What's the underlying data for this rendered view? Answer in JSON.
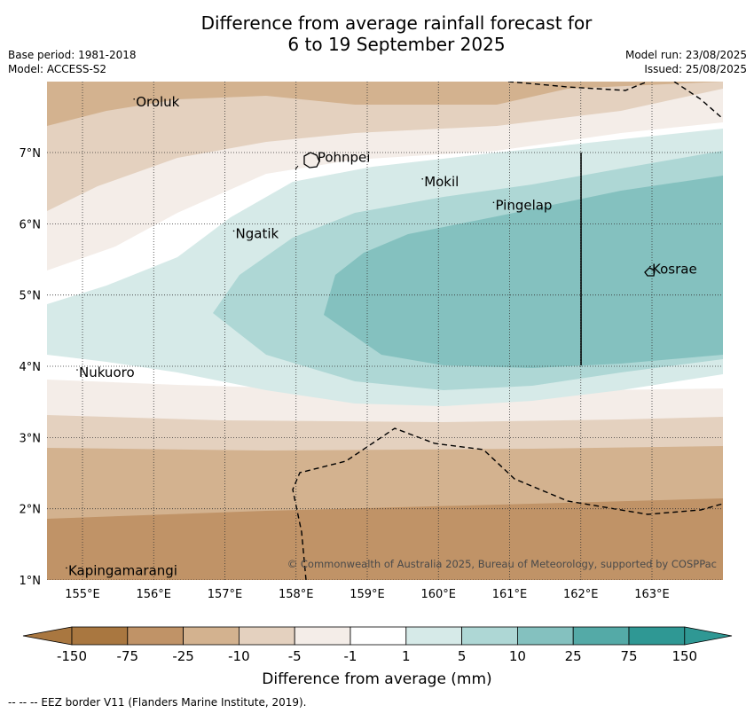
{
  "title_line1": "Difference from average rainfall forecast for",
  "title_line2": "6 to 19 September 2025",
  "meta_left": [
    "Base period: 1981-2018",
    "Model: ACCESS-S2"
  ],
  "meta_right": [
    "Model run: 23/08/2025",
    "Issued: 25/08/2025"
  ],
  "lon_ticks": [
    "155°E",
    "156°E",
    "157°E",
    "158°E",
    "159°E",
    "160°E",
    "161°E",
    "162°E",
    "163°E"
  ],
  "lon_values": [
    155,
    156,
    157,
    158,
    159,
    160,
    161,
    162,
    163
  ],
  "lat_ticks": [
    "1°N",
    "2°N",
    "3°N",
    "4°N",
    "5°N",
    "6°N",
    "7°N"
  ],
  "lat_values": [
    1,
    2,
    3,
    4,
    5,
    6,
    7
  ],
  "places": [
    {
      "name": "Oroluk",
      "lon": 155.75,
      "lat": 7.65
    },
    {
      "name": "Pohnpei",
      "lon": 158.3,
      "lat": 6.87
    },
    {
      "name": "Mokil",
      "lon": 159.8,
      "lat": 6.53
    },
    {
      "name": "Pingelap",
      "lon": 160.8,
      "lat": 6.2
    },
    {
      "name": "Ngatik",
      "lon": 157.15,
      "lat": 5.8
    },
    {
      "name": "Kosrae",
      "lon": 163.0,
      "lat": 5.3
    },
    {
      "name": "Nukuoro",
      "lon": 154.95,
      "lat": 3.85
    },
    {
      "name": "Kapingamarangi",
      "lon": 154.8,
      "lat": 1.07
    }
  ],
  "copyright": "© Commonwealth of Australia 2025, Bureau of Meteorology, supported by COSPPac",
  "colorbar": {
    "labels": [
      "-150",
      "-75",
      "-25",
      "-10",
      "-5",
      "-1",
      "1",
      "5",
      "10",
      "25",
      "75",
      "150"
    ],
    "colors": [
      "#a97740",
      "#c09367",
      "#d3b28f",
      "#e4d1bf",
      "#f4ede8",
      "#ffffff",
      "#d6eae8",
      "#aed7d5",
      "#84c1bf",
      "#54aaa7",
      "#2f9894"
    ],
    "title": "Difference from average (mm)"
  },
  "footer": "--  --  -- EEZ border V11 (Flanders Marine Institute, 2019)."
}
